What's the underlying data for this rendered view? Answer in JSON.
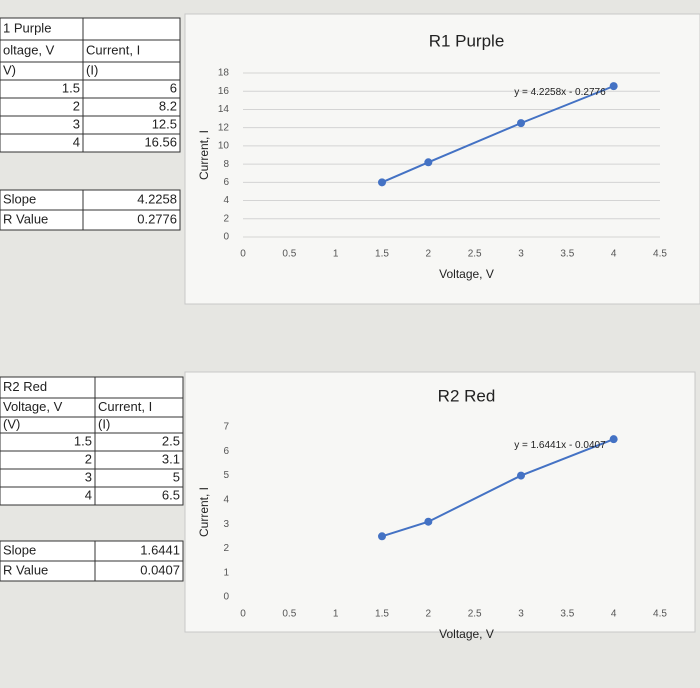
{
  "tables": [
    {
      "title": "1 Purple",
      "headers": [
        "oltage, V",
        "Current, I"
      ],
      "units": [
        "V)",
        "(I)"
      ],
      "rows": [
        [
          "1.5",
          "6"
        ],
        [
          "2",
          "8.2"
        ],
        [
          "3",
          "12.5"
        ],
        [
          "4",
          "16.56"
        ]
      ],
      "summary": [
        [
          "Slope",
          "4.2258"
        ],
        [
          "R Value",
          "0.2776"
        ]
      ]
    },
    {
      "title": "R2 Red",
      "headers": [
        "Voltage, V",
        "Current, I"
      ],
      "units": [
        "(V)",
        "(I)"
      ],
      "rows": [
        [
          "1.5",
          "2.5"
        ],
        [
          "2",
          "3.1"
        ],
        [
          "3",
          "5"
        ],
        [
          "4",
          "6.5"
        ]
      ],
      "summary": [
        [
          "Slope",
          "1.6441"
        ],
        [
          "R Value",
          "0.0407"
        ]
      ]
    }
  ],
  "chart_data": [
    {
      "type": "line",
      "title": "R1 Purple",
      "x_label": "Voltage, V",
      "y_label": "Current, I",
      "x": [
        1.5,
        2,
        3,
        4
      ],
      "values": [
        6,
        8.2,
        12.5,
        16.56
      ],
      "color": "#4472c4",
      "annotation": "y = 4.2258x - 0.2776",
      "xlim": [
        0,
        4.5
      ],
      "xticks": [
        0,
        0.5,
        1,
        1.5,
        2,
        2.5,
        3,
        3.5,
        4,
        4.5
      ],
      "ylim": [
        0,
        18
      ],
      "yticks": [
        0,
        2,
        4,
        6,
        8,
        10,
        12,
        14,
        16,
        18
      ],
      "grid": true
    },
    {
      "type": "line",
      "title": "R2 Red",
      "x_label": "Voltage, V",
      "y_label": "Current, I",
      "x": [
        1.5,
        2,
        3,
        4
      ],
      "values": [
        2.5,
        3.1,
        5,
        6.5
      ],
      "color": "#4472c4",
      "annotation": "y = 1.6441x - 0.0407",
      "xlim": [
        0,
        4.5
      ],
      "xticks": [
        0,
        0.5,
        1,
        1.5,
        2,
        2.5,
        3,
        3.5,
        4,
        4.5
      ],
      "ylim": [
        0,
        7
      ],
      "yticks": [
        0,
        1,
        2,
        3,
        4,
        5,
        6,
        7
      ],
      "grid": false
    }
  ]
}
